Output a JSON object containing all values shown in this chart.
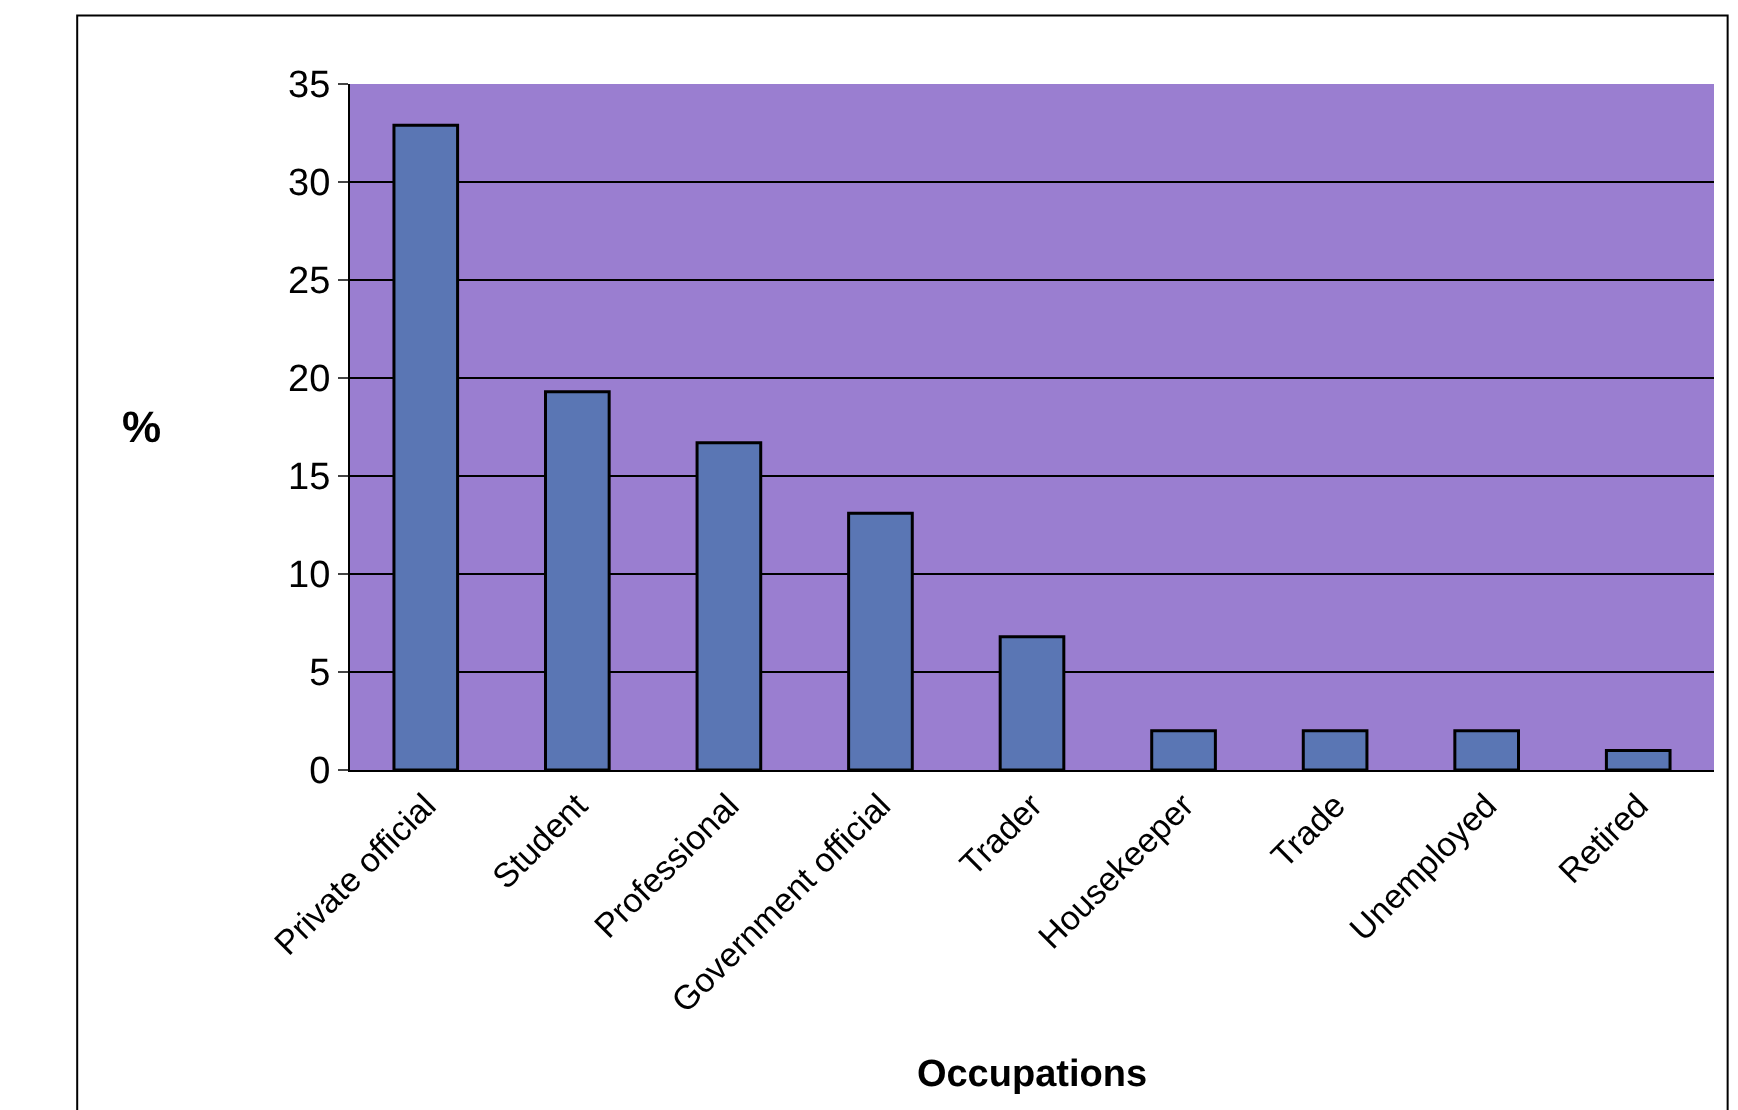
{
  "chart_data": {
    "type": "bar",
    "xlabel": "Occupations",
    "ylabel": "%",
    "categories": [
      "Private official",
      "Student",
      "Professional",
      "Government official",
      "Trader",
      "Housekeeper",
      "Trade",
      "Unemployed",
      "Retired"
    ],
    "values": [
      32.9,
      19.3,
      16.7,
      13.1,
      6.8,
      2.0,
      2.0,
      2.0,
      1.0
    ],
    "color": "#5a76b4",
    "ylim": [
      0,
      35
    ],
    "yticks": [
      0,
      5,
      10,
      15,
      20,
      25,
      30,
      35
    ],
    "grid": "y",
    "legend": false
  }
}
